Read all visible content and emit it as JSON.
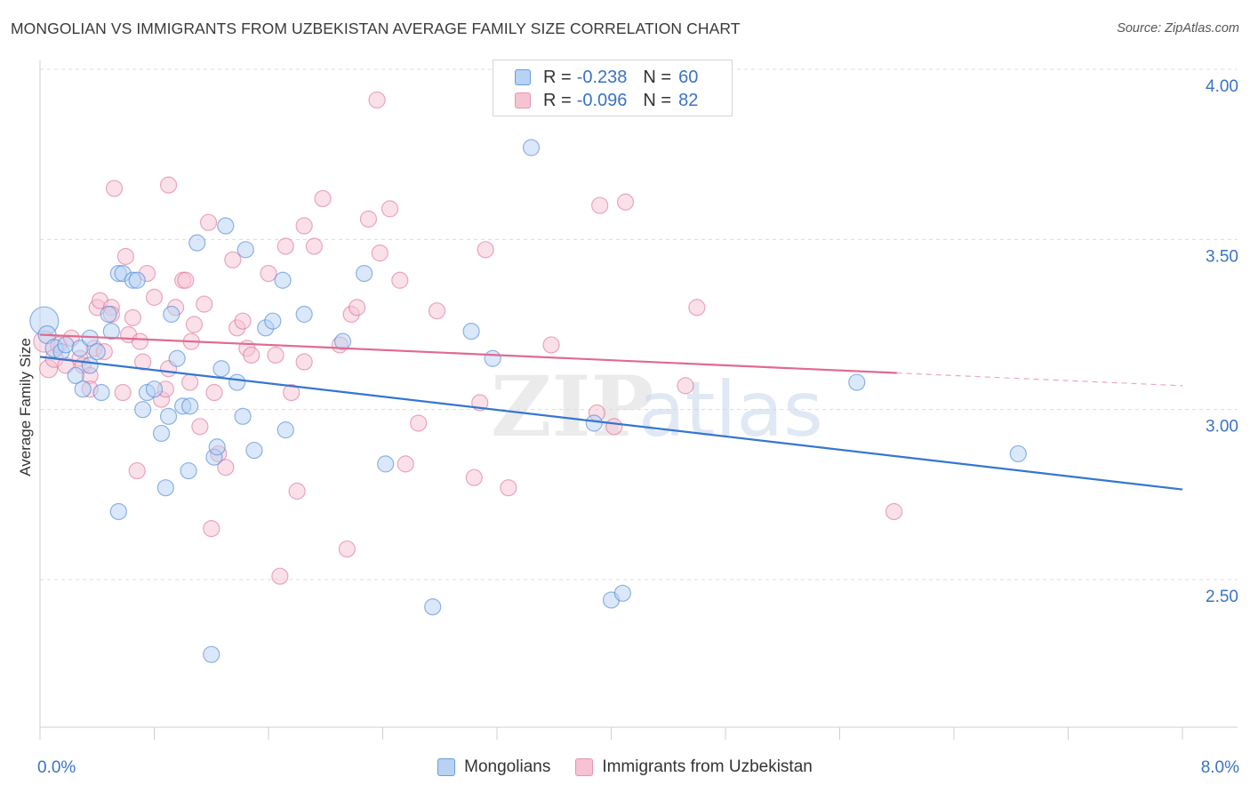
{
  "title": "MONGOLIAN VS IMMIGRANTS FROM UZBEKISTAN AVERAGE FAMILY SIZE CORRELATION CHART",
  "source": "Source: ZipAtlas.com",
  "watermark": {
    "part1": "ZIP",
    "part2": "atlas"
  },
  "legend": {
    "r_label": "R =",
    "n_label": "N =",
    "series": [
      {
        "r": "-0.238",
        "n": "60"
      },
      {
        "r": "-0.096",
        "n": "82"
      }
    ]
  },
  "chart_data": {
    "type": "scatter",
    "title": "MONGOLIAN VS IMMIGRANTS FROM UZBEKISTAN AVERAGE FAMILY SIZE CORRELATION CHART",
    "xlabel": "",
    "ylabel": "Average Family Size",
    "xlim": [
      0,
      8
    ],
    "ylim": [
      2.1,
      4.05
    ],
    "x_tick_labels": [
      "0.0%",
      "8.0%"
    ],
    "y_ticks": [
      2.5,
      3.0,
      3.5,
      4.0
    ],
    "y_tick_labels": [
      "2.50",
      "3.00",
      "3.50",
      "4.00"
    ],
    "series": [
      {
        "name": "Mongolians",
        "color": "#4a86d8",
        "fill": "#b8d2f3",
        "trend": {
          "x0": 0,
          "y0": 3.155,
          "x1": 8.0,
          "y1": 2.765,
          "dashed_from": null
        },
        "points": [
          [
            0.03,
            3.26,
            16
          ],
          [
            0.05,
            3.22,
            10
          ],
          [
            0.1,
            3.18,
            10
          ],
          [
            0.15,
            3.17,
            9
          ],
          [
            0.18,
            3.19,
            9
          ],
          [
            0.25,
            3.1,
            9
          ],
          [
            0.28,
            3.18,
            9
          ],
          [
            0.3,
            3.06,
            9
          ],
          [
            0.35,
            3.13,
            9
          ],
          [
            0.35,
            3.21,
            9
          ],
          [
            0.4,
            3.17,
            9
          ],
          [
            0.43,
            3.05,
            9
          ],
          [
            0.48,
            3.28,
            9
          ],
          [
            0.5,
            3.23,
            9
          ],
          [
            0.55,
            2.7,
            9
          ],
          [
            0.55,
            3.4,
            9
          ],
          [
            0.58,
            3.4,
            9
          ],
          [
            0.65,
            3.38,
            9
          ],
          [
            0.68,
            3.38,
            9
          ],
          [
            0.72,
            3.0,
            9
          ],
          [
            0.75,
            3.05,
            9
          ],
          [
            0.8,
            3.06,
            9
          ],
          [
            0.85,
            2.93,
            9
          ],
          [
            0.88,
            2.77,
            9
          ],
          [
            0.9,
            2.98,
            9
          ],
          [
            0.92,
            3.28,
            9
          ],
          [
            0.96,
            3.15,
            9
          ],
          [
            1.0,
            3.01,
            9
          ],
          [
            1.04,
            2.82,
            9
          ],
          [
            1.05,
            3.01,
            9
          ],
          [
            1.1,
            3.49,
            9
          ],
          [
            1.2,
            2.28,
            9
          ],
          [
            1.22,
            2.86,
            9
          ],
          [
            1.24,
            2.89,
            9
          ],
          [
            1.27,
            3.12,
            9
          ],
          [
            1.3,
            3.54,
            9
          ],
          [
            1.38,
            3.08,
            9
          ],
          [
            1.42,
            2.98,
            9
          ],
          [
            1.44,
            3.47,
            9
          ],
          [
            1.5,
            2.88,
            9
          ],
          [
            1.58,
            3.24,
            9
          ],
          [
            1.63,
            3.26,
            9
          ],
          [
            1.7,
            3.38,
            9
          ],
          [
            1.72,
            2.94,
            9
          ],
          [
            1.85,
            3.28,
            9
          ],
          [
            2.12,
            3.2,
            9
          ],
          [
            2.27,
            3.4,
            9
          ],
          [
            2.42,
            2.84,
            9
          ],
          [
            2.75,
            2.42,
            9
          ],
          [
            3.02,
            3.23,
            9
          ],
          [
            3.17,
            3.15,
            9
          ],
          [
            3.44,
            3.77,
            9
          ],
          [
            3.88,
            2.96,
            9
          ],
          [
            4.0,
            2.44,
            9
          ],
          [
            4.08,
            2.46,
            9
          ],
          [
            5.72,
            3.08,
            9
          ],
          [
            6.85,
            2.87,
            9
          ]
        ]
      },
      {
        "name": "Immigrants from Uzbekistan",
        "color": "#e07098",
        "fill": "#f6c3d3",
        "trend": {
          "x0": 0,
          "y0": 3.22,
          "x1": 8.0,
          "y1": 3.07,
          "dashed_from": 6.0
        },
        "points": [
          [
            0.03,
            3.2,
            12
          ],
          [
            0.06,
            3.12,
            10
          ],
          [
            0.1,
            3.15,
            10
          ],
          [
            0.13,
            3.19,
            9
          ],
          [
            0.18,
            3.13,
            9
          ],
          [
            0.22,
            3.21,
            9
          ],
          [
            0.28,
            3.15,
            9
          ],
          [
            0.3,
            3.13,
            9
          ],
          [
            0.35,
            3.1,
            9
          ],
          [
            0.35,
            3.06,
            9
          ],
          [
            0.38,
            3.18,
            9
          ],
          [
            0.4,
            3.3,
            9
          ],
          [
            0.42,
            3.32,
            9
          ],
          [
            0.45,
            3.17,
            9
          ],
          [
            0.5,
            3.3,
            9
          ],
          [
            0.5,
            3.28,
            9
          ],
          [
            0.52,
            3.65,
            9
          ],
          [
            0.58,
            3.05,
            9
          ],
          [
            0.6,
            3.45,
            9
          ],
          [
            0.62,
            3.22,
            9
          ],
          [
            0.65,
            3.27,
            9
          ],
          [
            0.68,
            2.82,
            9
          ],
          [
            0.7,
            3.2,
            9
          ],
          [
            0.72,
            3.14,
            9
          ],
          [
            0.75,
            3.4,
            9
          ],
          [
            0.8,
            3.33,
            9
          ],
          [
            0.85,
            3.03,
            9
          ],
          [
            0.88,
            3.06,
            9
          ],
          [
            0.9,
            3.12,
            9
          ],
          [
            0.9,
            3.66,
            9
          ],
          [
            0.95,
            3.3,
            9
          ],
          [
            1.0,
            3.38,
            9
          ],
          [
            1.02,
            3.38,
            9
          ],
          [
            1.05,
            3.08,
            9
          ],
          [
            1.06,
            3.2,
            9
          ],
          [
            1.08,
            3.25,
            9
          ],
          [
            1.12,
            2.95,
            9
          ],
          [
            1.15,
            3.31,
            9
          ],
          [
            1.18,
            3.55,
            9
          ],
          [
            1.2,
            2.65,
            9
          ],
          [
            1.22,
            3.05,
            9
          ],
          [
            1.25,
            2.87,
            9
          ],
          [
            1.3,
            2.83,
            9
          ],
          [
            1.35,
            3.44,
            9
          ],
          [
            1.38,
            3.24,
            9
          ],
          [
            1.42,
            3.26,
            9
          ],
          [
            1.45,
            3.18,
            9
          ],
          [
            1.48,
            3.16,
            9
          ],
          [
            1.6,
            3.4,
            9
          ],
          [
            1.65,
            3.16,
            9
          ],
          [
            1.68,
            2.51,
            9
          ],
          [
            1.72,
            3.48,
            9
          ],
          [
            1.76,
            3.05,
            9
          ],
          [
            1.8,
            2.76,
            9
          ],
          [
            1.85,
            3.54,
            9
          ],
          [
            1.92,
            3.48,
            9
          ],
          [
            1.98,
            3.62,
            9
          ],
          [
            2.1,
            3.19,
            9
          ],
          [
            2.15,
            2.59,
            9
          ],
          [
            2.18,
            3.28,
            9
          ],
          [
            2.22,
            3.3,
            9
          ],
          [
            2.3,
            3.56,
            9
          ],
          [
            2.36,
            3.91,
            9
          ],
          [
            2.38,
            3.46,
            9
          ],
          [
            2.45,
            3.59,
            9
          ],
          [
            2.52,
            3.38,
            9
          ],
          [
            2.56,
            2.84,
            9
          ],
          [
            2.65,
            2.96,
            9
          ],
          [
            2.78,
            3.29,
            9
          ],
          [
            3.04,
            2.8,
            9
          ],
          [
            3.08,
            3.02,
            9
          ],
          [
            3.12,
            3.47,
            9
          ],
          [
            3.28,
            2.77,
            9
          ],
          [
            3.58,
            3.19,
            9
          ],
          [
            3.9,
            2.99,
            9
          ],
          [
            3.92,
            3.6,
            9
          ],
          [
            4.02,
            2.95,
            9
          ],
          [
            4.1,
            3.61,
            9
          ],
          [
            4.52,
            3.07,
            9
          ],
          [
            4.6,
            3.3,
            9
          ],
          [
            5.98,
            2.7,
            9
          ],
          [
            1.85,
            3.14,
            9
          ]
        ]
      }
    ]
  }
}
